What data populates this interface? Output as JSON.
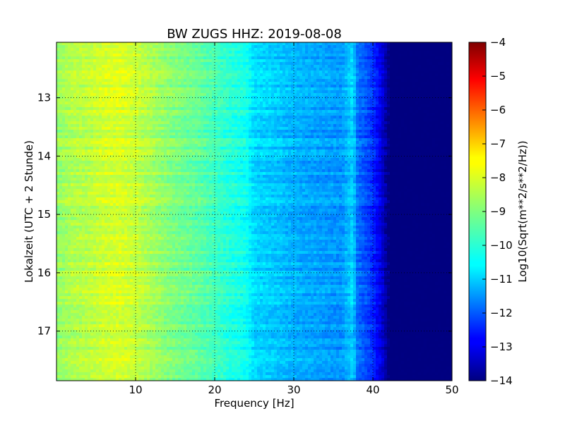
{
  "chart_data": {
    "type": "heatmap",
    "title": "BW ZUGS HHZ: 2019-08-08",
    "xlabel": "Frequency [Hz]",
    "ylabel": "Lokalzeit (UTC + 2 Stunde)",
    "xlim": [
      0,
      50
    ],
    "ylim": [
      12.05,
      17.85
    ],
    "y_inverted": true,
    "x_ticks": [
      10,
      20,
      30,
      40,
      50
    ],
    "x_tick_labels": [
      "10",
      "20",
      "30",
      "40",
      "50"
    ],
    "y_ticks": [
      13,
      14,
      15,
      16,
      17
    ],
    "y_tick_labels": [
      "13",
      "14",
      "15",
      "16",
      "17"
    ],
    "grid": true,
    "colormap": "jet",
    "colorbar": {
      "label": "Log10(Sqrt(m**2/s**2/Hz))",
      "range": [
        -14,
        -4
      ],
      "ticks": [
        -4,
        -5,
        -6,
        -7,
        -8,
        -9,
        -10,
        -11,
        -12,
        -13,
        -14
      ],
      "tick_labels": [
        "−4",
        "−5",
        "−6",
        "−7",
        "−8",
        "−9",
        "−10",
        "−11",
        "−12",
        "−13",
        "−14"
      ]
    },
    "spectrum_profile": {
      "frequency_hz": [
        0,
        2,
        4,
        6,
        8,
        10,
        12,
        14,
        16,
        18,
        20,
        22,
        24,
        25,
        28,
        30,
        32,
        34,
        36,
        37.5,
        38,
        40,
        41,
        42,
        44,
        46,
        48,
        50
      ],
      "level_log10": [
        -8.8,
        -8.5,
        -8.4,
        -8.2,
        -8.1,
        -8.3,
        -8.6,
        -8.9,
        -9.1,
        -9.3,
        -9.6,
        -9.9,
        -10.1,
        -10.6,
        -10.8,
        -11.0,
        -11.1,
        -11.2,
        -11.3,
        -10.6,
        -11.6,
        -12.3,
        -13.0,
        -14.0,
        -14.0,
        -14.0,
        -14.0,
        -14.0
      ]
    }
  }
}
